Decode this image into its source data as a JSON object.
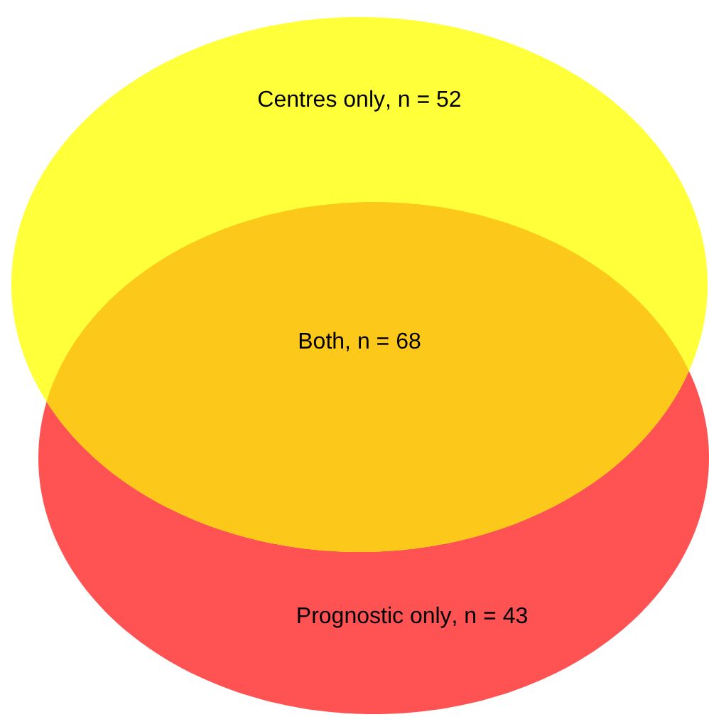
{
  "chart_data": {
    "type": "other",
    "categories": [
      "Centres only",
      "Both",
      "Prognostic only"
    ],
    "values": [
      52,
      68,
      43
    ],
    "value_labels": [
      ", n = 52",
      ", n = 68",
      ", n = 43"
    ],
    "colors": [
      "#ffff3a",
      "#fcc81a",
      "#ff5252"
    ]
  }
}
